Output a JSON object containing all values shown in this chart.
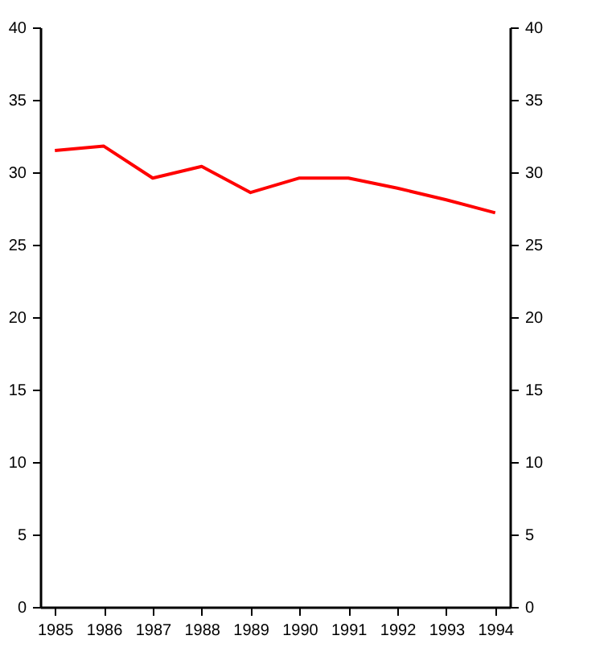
{
  "chart_data": {
    "type": "line",
    "x": [
      1985,
      1986,
      1987,
      1988,
      1989,
      1990,
      1991,
      1992,
      1993,
      1994
    ],
    "series": [
      {
        "color": "#ff0000",
        "values": [
          31.5,
          31.8,
          29.6,
          30.4,
          28.6,
          29.6,
          29.6,
          28.9,
          28.1,
          27.2
        ]
      }
    ],
    "xlim": [
      1984.7,
      1994.3
    ],
    "xticks": [
      1985,
      1986,
      1987,
      1988,
      1989,
      1990,
      1991,
      1992,
      1993,
      1994
    ],
    "ylim": [
      0,
      40
    ],
    "yticks": [
      0,
      5,
      10,
      15,
      20,
      25,
      30,
      35,
      40
    ],
    "y2lim": [
      0,
      40
    ],
    "y2ticks": [
      0,
      5,
      10,
      15,
      20,
      25,
      30,
      35,
      40
    ],
    "grid": false
  }
}
